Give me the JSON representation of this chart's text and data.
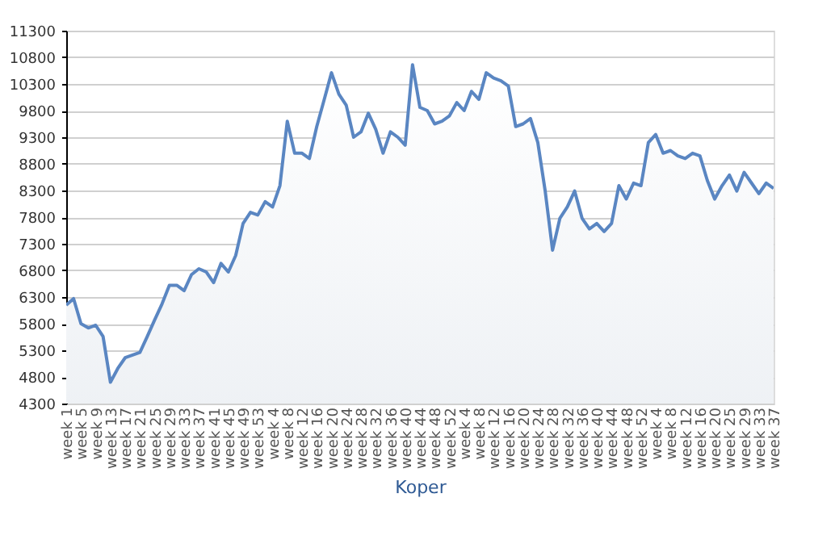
{
  "chart_data": {
    "type": "area",
    "xlabel": "Koper",
    "categories": [
      "week 1",
      null,
      "week 5",
      null,
      "week 9",
      null,
      "week 13",
      null,
      "week 17",
      null,
      "week 21",
      null,
      "week 25",
      null,
      "week 29",
      null,
      "week 33",
      null,
      "week 37",
      null,
      "week 41",
      null,
      "week 45",
      null,
      "week 49",
      null,
      "week 53",
      null,
      "week 4",
      null,
      "week 8",
      null,
      "week 12",
      null,
      "week 16",
      null,
      "week 20",
      null,
      "week 24",
      null,
      "week 28",
      null,
      "week 32",
      null,
      "week 36",
      null,
      "week 40",
      null,
      "week 44",
      null,
      "week 48",
      null,
      "week 52",
      null,
      "week 4",
      null,
      "week 8",
      null,
      "week 12",
      null,
      "week 16",
      null,
      "week 20",
      null,
      "week 24",
      null,
      "week 28",
      null,
      "week 32",
      null,
      "week 36",
      null,
      "week 40",
      null,
      "week 44",
      null,
      "week 48",
      null,
      "week 52",
      null,
      "week 4",
      null,
      "week 8",
      null,
      "week 12",
      null,
      "week 16",
      null,
      "week 20",
      null,
      "week 25",
      null,
      "week 29",
      null,
      "week 33",
      null,
      "week 37"
    ],
    "series": [
      {
        "color": "#5a86c2",
        "values": [
          6150,
          6270,
          5800,
          5720,
          5770,
          5560,
          4700,
          4960,
          5160,
          5210,
          5260,
          5560,
          5870,
          6170,
          6520,
          6520,
          6420,
          6720,
          6830,
          6770,
          6570,
          6930,
          6770,
          7080,
          7680,
          7890,
          7840,
          8090,
          7990,
          8390,
          9600,
          9000,
          9000,
          8900,
          9500,
          10000,
          10510,
          10110,
          9900,
          9300,
          9400,
          9750,
          9450,
          9000,
          9400,
          9300,
          9150,
          10660,
          9860,
          9800,
          9550,
          9600,
          9700,
          9950,
          9800,
          10160,
          10010,
          10510,
          10410,
          10360,
          10260,
          9500,
          9550,
          9650,
          9200,
          8290,
          7180,
          7780,
          7990,
          8290,
          7780,
          7580,
          7680,
          7530,
          7680,
          8390,
          8140,
          8440,
          8390,
          9200,
          9350,
          9000,
          9050,
          8950,
          8900,
          9000,
          8950,
          8490,
          8140,
          8390,
          8590,
          8290,
          8640,
          8440,
          8240,
          8440,
          8340
        ]
      }
    ],
    "ylim": [
      4300,
      11300
    ],
    "yticks": [
      4300,
      4800,
      5300,
      5800,
      6300,
      6800,
      7300,
      7800,
      8300,
      8800,
      9300,
      9800,
      10300,
      10800,
      11300
    ],
    "grid": "y"
  }
}
